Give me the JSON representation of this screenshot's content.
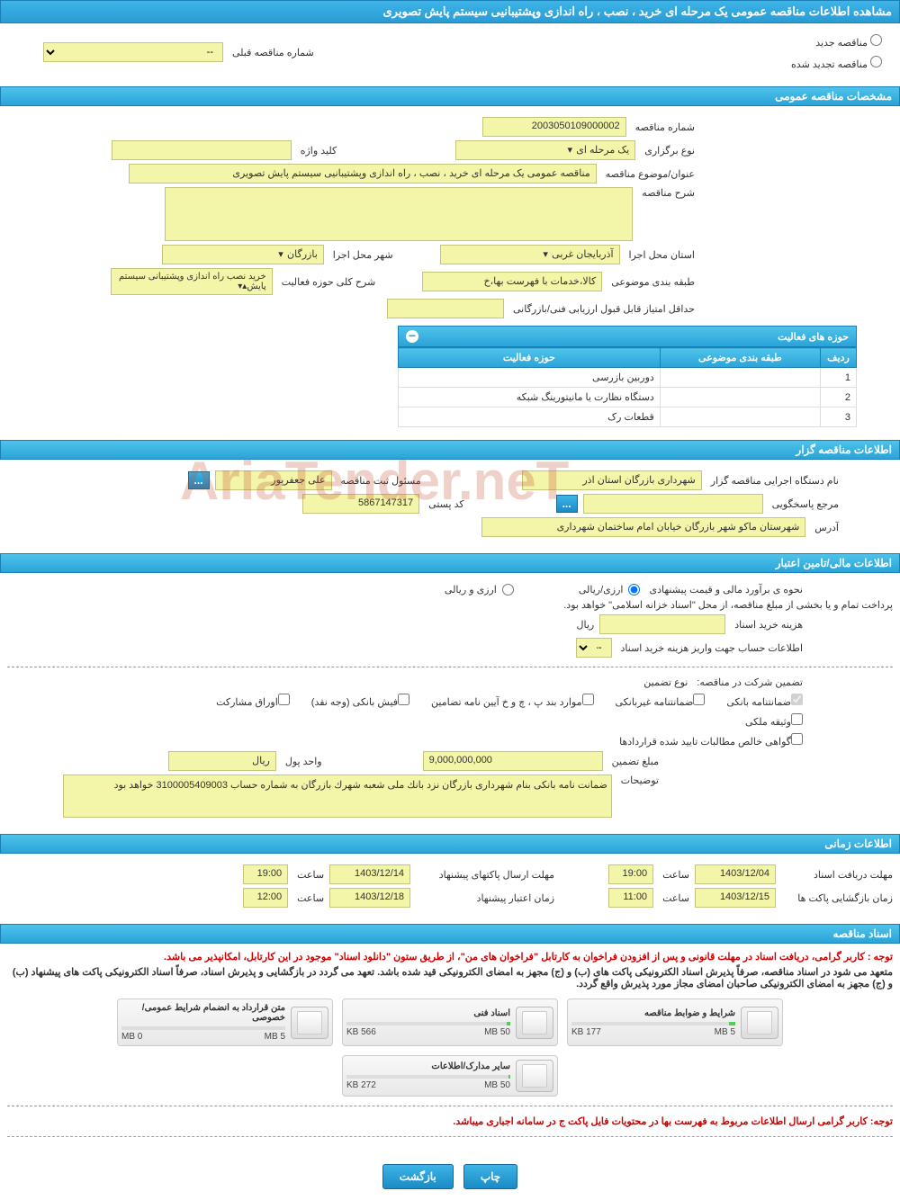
{
  "header": {
    "title": "مشاهده اطلاعات مناقصه عمومی یک مرحله ای خرید ، نصب ، راه اندازی وپشتیبانیی سیستم پایش تصویری"
  },
  "radio": {
    "new_tender": "مناقصه جدید",
    "renewed_tender": "مناقصه تجدید شده",
    "prev_label": "شماره مناقصه قبلی",
    "prev_value": "--"
  },
  "sections": {
    "general": "مشخصات مناقصه عمومی",
    "organizer": "اطلاعات مناقصه گزار",
    "financial": "اطلاعات مالی/تامین اعتبار",
    "timing": "اطلاعات زمانی",
    "documents": "اسناد مناقصه"
  },
  "general": {
    "tender_no_label": "شماره مناقصه",
    "tender_no": "2003050109000002",
    "type_label": "نوع برگزاری",
    "type": "یک مرحله ای",
    "keyword_label": "کلید واژه",
    "keyword": "",
    "subject_label": "عنوان/موضوع مناقصه",
    "subject": "مناقصه عمومی یک مرحله ای خرید ، نصب ، راه اندازی وپشتیبانیی سیستم پایش تصویری",
    "desc_label": "شرح مناقصه",
    "desc": "",
    "province_label": "استان محل اجرا",
    "province": "آذربایجان غربی",
    "city_label": "شهر محل اجرا",
    "city": "بازرگان",
    "category_label": "طبقه بندی موضوعی",
    "category": "کالا،خدمات با فهرست بها،خ",
    "activity_summary_label": "شرح کلی حوزه فعالیت",
    "activity_summary": "خرید نصب راه اندازی وپشتیبانی سیستم پایش",
    "min_score_label": "حداقل امتیاز قابل قبول ارزیابی فنی/بازرگانی",
    "min_score": ""
  },
  "activity_table": {
    "title": "حوزه های فعالیت",
    "col_row": "ردیف",
    "col_cat": "طبقه بندی موضوعی",
    "col_area": "حوزه فعالیت",
    "rows": [
      {
        "n": "1",
        "cat": "",
        "area": "دوربین بازرسی"
      },
      {
        "n": "2",
        "cat": "",
        "area": "دستگاه نظارت یا مانیتورینگ شبکه"
      },
      {
        "n": "3",
        "cat": "",
        "area": "قطعات رک"
      }
    ]
  },
  "organizer": {
    "exec_label": "نام دستگاه اجرایی مناقصه گزار",
    "exec": "شهرداری بازرگان استان اذر",
    "registrar_label": "مسئول ثبت مناقصه",
    "registrar": "علی جعفرپور",
    "response_label": "مرجع پاسخگویی",
    "response": "",
    "postal_label": "کد پستی",
    "postal": "5867147317",
    "address_label": "آدرس",
    "address": "شهرستان ماکو شهر بازرگان خیابان امام ساختمان شهرداری"
  },
  "financial": {
    "estimate_label": "نحوه ی برآورد مالی و قیمت پیشنهادی",
    "opt1": "ارزی/ریالی",
    "opt2": "ارزی و ریالی",
    "payment_note": "پرداخت تمام و یا بخشی از مبلغ مناقصه، از محل \"اسناد خزانه اسلامی\" خواهد بود.",
    "cost_label": "هزینه خرید اسناد",
    "cost": "",
    "cost_unit": "ریال",
    "account_info_label": "اطلاعات حساب جهت واریز هزینه خرید اسناد",
    "guarantee_label": "تضمین شرکت در مناقصه:",
    "guarantee_type": "نوع تضمین",
    "g1": "ضمانتنامه بانکی",
    "g2": "ضمانتنامه غیربانکی",
    "g3": "موارد بند پ ، چ و خ آیین نامه تضامین",
    "g4": "فیش بانکی (وجه نقد)",
    "g5": "اوراق مشارکت",
    "g6": "وثیقه ملکی",
    "g7": "گواهی خالص مطالبات تایید شده قراردادها",
    "amount_label": "مبلغ تضمین",
    "amount": "9,000,000,000",
    "unit_label": "واحد پول",
    "unit": "ریال",
    "details_label": "توضیحات",
    "details": "ضمانت نامه بانکی بنام شهرداری بازرگان نزد بانك ملی شعبه شهرك بازرگان به شماره حساب 3100005409003 خواهد بود"
  },
  "timing": {
    "doc_deadline_label": "مهلت دریافت اسناد",
    "doc_deadline_date": "1403/12/04",
    "doc_deadline_time": "19:00",
    "time_label": "ساعت",
    "open_label": "زمان بازگشایی پاکت ها",
    "open_date": "1403/12/15",
    "open_time": "11:00",
    "send_label": "مهلت ارسال پاکتهای پیشنهاد",
    "send_date": "1403/12/14",
    "send_time": "19:00",
    "validity_label": "زمان اعتبار پیشنهاد",
    "validity_date": "1403/12/18",
    "validity_time": "12:00"
  },
  "documents": {
    "note1": "توجه : کاربر گرامی، دریافت اسناد در مهلت قانونی و پس از افزودن فراخوان به کارتابل \"فراخوان های من\"، از طریق ستون \"دانلود اسناد\" موجود در این کارتابل، امکانپذیر می باشد.",
    "note2": "متعهد می شود در اسناد مناقصه، صرفاً پذیرش اسناد الکترونیکی پاکت های (ب) و (ج) مجهز به امضای الکترونیکی قید شده باشد. تعهد می گردد در بازگشایی و پذیرش اسناد، صرفاً اسناد الکترونیکی پاکت های پیشنهاد (ب) و (ج) مجهز به امضای الکترونیکی صاحبان امضای مجاز مورد پذیرش واقع گردد.",
    "note3": "توجه: کاربر گرامی ارسال اطلاعات مربوط به فهرست بها در محتویات فایل پاکت ج در سامانه اجباری میباشد.",
    "files": [
      {
        "title": "شرایط و ضوابط مناقصه",
        "size": "177 KB",
        "max": "5 MB",
        "pct": 4
      },
      {
        "title": "اسناد فنی",
        "size": "566 KB",
        "max": "50 MB",
        "pct": 2
      },
      {
        "title": "متن قرارداد به انضمام شرایط عمومی/خصوصی",
        "size": "0 MB",
        "max": "5 MB",
        "pct": 0
      },
      {
        "title": "سایر مدارک/اطلاعات",
        "size": "272 KB",
        "max": "50 MB",
        "pct": 1
      }
    ]
  },
  "buttons": {
    "print": "چاپ",
    "back": "بازگشت"
  },
  "watermark": "AriaTender.neT"
}
